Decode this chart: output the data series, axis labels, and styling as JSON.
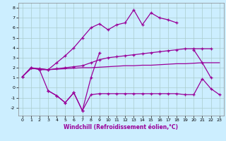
{
  "x": [
    0,
    1,
    2,
    3,
    4,
    5,
    6,
    7,
    8,
    9,
    10,
    11,
    12,
    13,
    14,
    15,
    16,
    17,
    18,
    19,
    20,
    21,
    22,
    23
  ],
  "line1": [
    1.1,
    2.0,
    1.8,
    1.8,
    2.5,
    3.2,
    4.0,
    5.0,
    6.0,
    6.4,
    5.8,
    6.3,
    6.5,
    7.8,
    6.3,
    7.5,
    7.0,
    6.8,
    6.5,
    null,
    3.8,
    2.5,
    1.0,
    null
  ],
  "line2": [
    1.1,
    2.0,
    1.9,
    1.8,
    1.9,
    2.0,
    2.1,
    2.2,
    2.5,
    2.8,
    3.0,
    3.1,
    3.2,
    3.3,
    3.4,
    3.5,
    3.6,
    3.7,
    3.8,
    3.9,
    3.9,
    3.9,
    3.9,
    null
  ],
  "line3": [
    1.1,
    1.9,
    1.9,
    1.8,
    1.85,
    1.9,
    1.95,
    2.0,
    2.0,
    2.05,
    2.1,
    2.15,
    2.2,
    2.2,
    2.25,
    2.25,
    2.3,
    2.35,
    2.4,
    2.4,
    2.45,
    2.5,
    2.5,
    2.5
  ],
  "line4_x": [
    2,
    3,
    4,
    5,
    6,
    7,
    8,
    9
  ],
  "line4_y": [
    1.8,
    -0.3,
    -0.8,
    -1.5,
    -0.5,
    -2.3,
    1.0,
    3.5
  ],
  "line5_x": [
    3,
    4,
    5,
    6,
    7,
    8,
    9,
    10,
    11,
    12,
    13,
    14,
    15,
    16,
    17,
    18,
    19,
    20,
    21,
    22,
    23
  ],
  "line5_y": [
    -0.3,
    -0.8,
    -1.5,
    -0.5,
    -2.3,
    -0.7,
    -0.6,
    -0.6,
    -0.6,
    -0.6,
    -0.6,
    -0.6,
    -0.6,
    -0.6,
    -0.6,
    -0.6,
    -0.7,
    -0.7,
    0.9,
    -0.1,
    -0.7
  ],
  "color": "#990099",
  "bg_color": "#cceeff",
  "grid_color": "#aacccc",
  "xlabel": "Windchill (Refroidissement éolien,°C)",
  "xlim": [
    -0.5,
    23.5
  ],
  "ylim": [
    -2.8,
    8.5
  ],
  "yticks": [
    -2,
    -1,
    0,
    1,
    2,
    3,
    4,
    5,
    6,
    7,
    8
  ],
  "xticks": [
    0,
    1,
    2,
    3,
    4,
    5,
    6,
    7,
    8,
    9,
    10,
    11,
    12,
    13,
    14,
    15,
    16,
    17,
    18,
    19,
    20,
    21,
    22,
    23
  ]
}
